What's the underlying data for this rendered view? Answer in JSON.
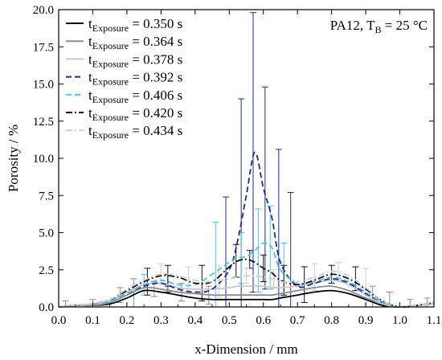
{
  "chart_data": {
    "type": "line",
    "annotation": {
      "main": "PA12, T",
      "sub": "B",
      "rest": " = 25 °C"
    },
    "xlabel": "x-Dimension / mm",
    "ylabel": "Porosity / %",
    "xlim": [
      0.0,
      1.1
    ],
    "ylim": [
      0.0,
      20.0
    ],
    "xticks": [
      "0.0",
      "0.1",
      "0.2",
      "0.3",
      "0.4",
      "0.5",
      "0.6",
      "0.7",
      "0.8",
      "0.9",
      "1.0",
      "1.1"
    ],
    "yticks": [
      "0.0",
      "2.5",
      "5.0",
      "7.5",
      "10.0",
      "12.5",
      "15.0",
      "17.5",
      "20.0"
    ],
    "grid": false,
    "legend_position": "top-left",
    "legend_prefix": "t",
    "legend_sub": "Exposure",
    "x": [
      0.0,
      0.05,
      0.1,
      0.15,
      0.2,
      0.25,
      0.3,
      0.35,
      0.4,
      0.45,
      0.5,
      0.525,
      0.55,
      0.575,
      0.6,
      0.625,
      0.65,
      0.7,
      0.75,
      0.8,
      0.85,
      0.9,
      0.95,
      1.0,
      1.05,
      1.1
    ],
    "series": [
      {
        "name": "= 0.350 s",
        "color": "#000000",
        "dash": "solid",
        "values": [
          0.0,
          0.1,
          0.1,
          0.2,
          0.6,
          1.1,
          1.0,
          0.8,
          0.6,
          0.5,
          0.5,
          0.5,
          0.5,
          0.5,
          0.5,
          0.5,
          0.6,
          0.8,
          1.0,
          1.1,
          0.9,
          0.5,
          0.1,
          0.0,
          0.1,
          0.2
        ]
      },
      {
        "name": "= 0.364 s",
        "color": "#8c8c8c",
        "dash": "solid",
        "values": [
          0.0,
          0.1,
          0.1,
          0.3,
          0.8,
          1.3,
          1.2,
          1.0,
          0.9,
          0.8,
          0.8,
          0.8,
          0.8,
          0.8,
          0.8,
          0.8,
          0.9,
          1.1,
          1.3,
          1.4,
          1.1,
          0.6,
          0.2,
          0.0,
          0.1,
          0.2
        ]
      },
      {
        "name": "= 0.378 s",
        "color": "#c8c8c8",
        "dash": "solid",
        "values": [
          0.0,
          0.1,
          0.2,
          0.4,
          1.0,
          1.5,
          1.6,
          1.3,
          1.2,
          1.2,
          1.3,
          1.4,
          1.4,
          1.4,
          1.4,
          1.3,
          1.3,
          1.4,
          1.6,
          1.8,
          1.5,
          0.8,
          0.2,
          0.0,
          0.1,
          0.2
        ]
      },
      {
        "name": "= 0.392 s",
        "color": "#1a2a9e",
        "dash": "dash",
        "values": [
          0.0,
          0.1,
          0.2,
          0.4,
          0.9,
          1.4,
          1.6,
          1.2,
          1.0,
          1.2,
          2.5,
          4.5,
          7.5,
          10.4,
          8.0,
          6.0,
          3.0,
          1.4,
          1.6,
          1.9,
          1.6,
          0.9,
          0.3,
          0.0,
          0.1,
          0.3
        ]
      },
      {
        "name": "= 0.406 s",
        "color": "#4ac6e8",
        "dash": "dash",
        "values": [
          0.0,
          0.1,
          0.2,
          0.4,
          0.9,
          1.5,
          1.8,
          1.5,
          1.5,
          2.2,
          3.0,
          3.3,
          3.4,
          3.8,
          4.3,
          4.0,
          2.5,
          1.6,
          1.7,
          2.0,
          1.7,
          1.0,
          0.3,
          0.0,
          0.1,
          0.3
        ]
      },
      {
        "name": "= 0.420 s",
        "color": "#111111",
        "dash": "dashdot",
        "values": [
          0.0,
          0.1,
          0.2,
          0.5,
          1.1,
          1.7,
          2.1,
          2.0,
          1.6,
          1.7,
          2.7,
          3.1,
          3.2,
          3.0,
          2.6,
          2.3,
          1.8,
          1.5,
          1.8,
          2.2,
          1.9,
          1.2,
          0.4,
          0.0,
          0.1,
          0.3
        ]
      },
      {
        "name": "= 0.434 s",
        "color": "#cfcfcf",
        "dash": "dashdot",
        "values": [
          0.0,
          0.1,
          0.2,
          0.5,
          1.2,
          1.8,
          2.2,
          2.1,
          1.8,
          1.7,
          1.9,
          2.0,
          2.1,
          2.1,
          2.0,
          1.9,
          1.7,
          1.7,
          2.0,
          2.4,
          2.1,
          1.3,
          0.4,
          0.0,
          0.1,
          0.3
        ]
      }
    ],
    "error_bars": [
      {
        "series": 3,
        "points": [
          [
            0.49,
            7.4
          ],
          [
            0.535,
            14.0
          ],
          [
            0.57,
            19.8
          ],
          [
            0.605,
            14.8
          ],
          [
            0.645,
            10.6
          ],
          [
            0.68,
            7.7
          ],
          [
            0.32,
            2.2
          ]
        ]
      },
      {
        "series": 4,
        "points": [
          [
            0.46,
            5.7
          ],
          [
            0.535,
            5.0
          ],
          [
            0.585,
            6.6
          ],
          [
            0.62,
            6.8
          ],
          [
            0.66,
            4.3
          ],
          [
            0.25,
            2.2
          ]
        ]
      },
      {
        "series": 5,
        "points": [
          [
            0.26,
            2.6
          ],
          [
            0.32,
            2.8
          ],
          [
            0.42,
            2.8
          ],
          [
            0.52,
            4.2
          ],
          [
            0.56,
            3.8
          ],
          [
            0.6,
            3.5
          ],
          [
            0.66,
            2.8
          ],
          [
            0.72,
            2.7
          ],
          [
            0.8,
            2.8
          ],
          [
            0.87,
            2.7
          ]
        ]
      },
      {
        "series": 6,
        "points": [
          [
            0.3,
            2.9
          ],
          [
            0.38,
            2.7
          ],
          [
            0.47,
            2.8
          ],
          [
            0.55,
            2.6
          ],
          [
            0.63,
            2.5
          ],
          [
            0.75,
            2.9
          ],
          [
            0.82,
            3.0
          ],
          [
            0.9,
            2.6
          ]
        ]
      },
      {
        "series": 1,
        "points": [
          [
            0.02,
            0.4
          ],
          [
            0.1,
            0.5
          ],
          [
            0.18,
            1.3
          ],
          [
            0.22,
            1.9
          ],
          [
            0.28,
            1.7
          ],
          [
            0.36,
            1.6
          ],
          [
            0.44,
            1.4
          ],
          [
            0.92,
            1.4
          ],
          [
            0.97,
            1.0
          ],
          [
            1.03,
            0.5
          ],
          [
            1.08,
            0.6
          ]
        ]
      }
    ]
  }
}
